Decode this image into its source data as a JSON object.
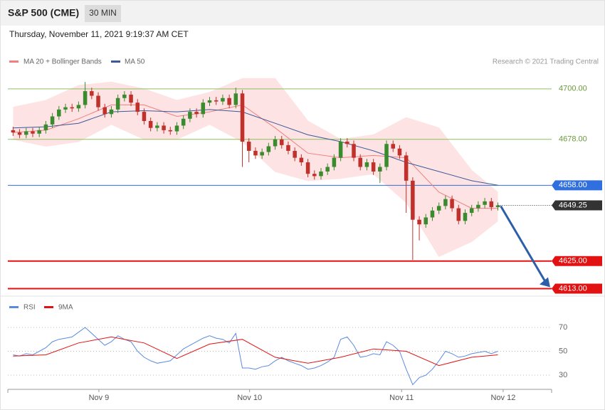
{
  "chart_data": [
    {
      "type": "candlestick",
      "title": "S&P 500 (CME)",
      "timeframe": "30 MIN",
      "subtitle": "Thursday, November 11, 2021 9:19:37 AM CET",
      "source": "Research © 2021 Trading Central",
      "xlim": [
        -0.8,
        82.2
      ],
      "ylim": [
        4611.6,
        4720.1
      ],
      "up_color": "#3a8a2e",
      "down_color": "#c0312b",
      "x": [
        0,
        1,
        2,
        3,
        4,
        5,
        6,
        7,
        8,
        9,
        10,
        11,
        12,
        13,
        14,
        15,
        16,
        17,
        18,
        19,
        20,
        21,
        22,
        23,
        24,
        25,
        26,
        27,
        28,
        29,
        30,
        31,
        32,
        33,
        34,
        35,
        36,
        37,
        38,
        39,
        40,
        41,
        42,
        43,
        44,
        45,
        46,
        47,
        48,
        49,
        50,
        51,
        52,
        53,
        54,
        55,
        56,
        57,
        58,
        59,
        60,
        61,
        62,
        63,
        64,
        65,
        66,
        67,
        68,
        69,
        70,
        71,
        72,
        73,
        74
      ],
      "ohlc": [
        [
          4682,
          4683.5,
          4679.5,
          4681
        ],
        [
          4681,
          4682.5,
          4678.5,
          4680
        ],
        [
          4680,
          4683,
          4678.5,
          4681.5
        ],
        [
          4681.5,
          4683,
          4679,
          4680.5
        ],
        [
          4680.5,
          4683.5,
          4679,
          4682
        ],
        [
          4682,
          4686,
          4680.5,
          4684.5
        ],
        [
          4684.5,
          4689.5,
          4683,
          4688
        ],
        [
          4688,
          4692.5,
          4686.5,
          4691
        ],
        [
          4691,
          4693.5,
          4689.5,
          4692
        ],
        [
          4692,
          4693.5,
          4690,
          4691.5
        ],
        [
          4691.5,
          4694.5,
          4690,
          4693
        ],
        [
          4693,
          4703,
          4691.5,
          4699
        ],
        [
          4699,
          4700.5,
          4695.5,
          4697
        ],
        [
          4697,
          4698.5,
          4690.5,
          4692
        ],
        [
          4692,
          4693.5,
          4687.5,
          4689
        ],
        [
          4689,
          4692.5,
          4687.5,
          4691
        ],
        [
          4691,
          4697.5,
          4689.5,
          4696
        ],
        [
          4696,
          4699,
          4694.5,
          4697.5
        ],
        [
          4697.5,
          4699,
          4692.5,
          4694
        ],
        [
          4694,
          4695.5,
          4688.5,
          4690
        ],
        [
          4690,
          4691.5,
          4684.5,
          4686
        ],
        [
          4686,
          4687.5,
          4681.5,
          4683
        ],
        [
          4683,
          4685.5,
          4681.5,
          4684
        ],
        [
          4684,
          4685.5,
          4680.5,
          4682
        ],
        [
          4682,
          4683.5,
          4680,
          4681.5
        ],
        [
          4681.5,
          4685.5,
          4680,
          4684
        ],
        [
          4684,
          4688.5,
          4682.5,
          4687
        ],
        [
          4687,
          4691.5,
          4685.5,
          4690
        ],
        [
          4690,
          4691.5,
          4687.5,
          4689
        ],
        [
          4689,
          4695.5,
          4687.5,
          4694
        ],
        [
          4694,
          4696.5,
          4692.5,
          4695
        ],
        [
          4695,
          4696.5,
          4693,
          4694.5
        ],
        [
          4694.5,
          4697.5,
          4693,
          4696
        ],
        [
          4696,
          4697.5,
          4691.5,
          4693
        ],
        [
          4693,
          4700.5,
          4691.5,
          4698
        ],
        [
          4698,
          4699.5,
          4666,
          4677
        ],
        [
          4677,
          4678.5,
          4668,
          4673
        ],
        [
          4673,
          4674.5,
          4669.5,
          4671
        ],
        [
          4671,
          4674,
          4669.5,
          4672.5
        ],
        [
          4672.5,
          4676.5,
          4671,
          4675
        ],
        [
          4675,
          4679.5,
          4673.5,
          4678
        ],
        [
          4678,
          4679.5,
          4674,
          4675.5
        ],
        [
          4675.5,
          4677,
          4671.5,
          4673
        ],
        [
          4673,
          4674.5,
          4668.5,
          4670
        ],
        [
          4670,
          4671.5,
          4666.5,
          4668
        ],
        [
          4668,
          4669.5,
          4661.5,
          4663
        ],
        [
          4663,
          4664.5,
          4660.5,
          4662
        ],
        [
          4662,
          4665.5,
          4660.5,
          4664
        ],
        [
          4664,
          4667.5,
          4662.5,
          4666
        ],
        [
          4666,
          4671.5,
          4664.5,
          4670
        ],
        [
          4670,
          4678.5,
          4668.5,
          4677
        ],
        [
          4677,
          4678.5,
          4674.5,
          4676
        ],
        [
          4676,
          4677.5,
          4668.5,
          4670
        ],
        [
          4670,
          4671.5,
          4664.5,
          4666
        ],
        [
          4666,
          4669.5,
          4664.5,
          4668
        ],
        [
          4668,
          4669.5,
          4662.5,
          4664
        ],
        [
          4664,
          4667.5,
          4659,
          4666
        ],
        [
          4666,
          4677.5,
          4664.5,
          4676
        ],
        [
          4676,
          4677.5,
          4672.5,
          4674
        ],
        [
          4674,
          4675.5,
          4669.5,
          4671
        ],
        [
          4671,
          4672.5,
          4646,
          4660
        ],
        [
          4660,
          4661.5,
          4625.5,
          4643
        ],
        [
          4643,
          4644.5,
          4634,
          4641
        ],
        [
          4641,
          4645.5,
          4639.5,
          4644
        ],
        [
          4644,
          4648.5,
          4642.5,
          4647
        ],
        [
          4647,
          4650.5,
          4645.5,
          4649
        ],
        [
          4649,
          4653.5,
          4647.5,
          4652
        ],
        [
          4652,
          4653.5,
          4646.5,
          4648
        ],
        [
          4648,
          4649.5,
          4641,
          4642.5
        ],
        [
          4642.5,
          4647.5,
          4641,
          4646
        ],
        [
          4646,
          4649.5,
          4644.5,
          4648
        ],
        [
          4648,
          4651,
          4646.5,
          4649.5
        ],
        [
          4649.5,
          4652.5,
          4648,
          4651
        ],
        [
          4651,
          4652.5,
          4647,
          4648.5
        ],
        [
          4648.5,
          4650.5,
          4647,
          4649.25
        ]
      ],
      "bands": {
        "name": "MA 20 + Bollinger Bands",
        "color": "#f08080",
        "fill": "#fde3e3",
        "x": [
          0,
          5,
          10,
          15,
          20,
          25,
          30,
          35,
          40,
          45,
          50,
          55,
          60,
          65,
          70,
          74
        ],
        "upper": [
          4692,
          4695,
          4701.5,
          4703,
          4700,
          4695,
          4698.5,
          4704.5,
          4704.5,
          4686,
          4678,
          4680,
          4687.5,
          4683,
          4664.5,
          4655
        ],
        "middle": [
          4681,
          4682,
          4687,
          4693,
          4693,
          4688,
          4690,
          4693,
          4683,
          4672,
          4670,
          4671,
          4670,
          4655,
          4648,
          4648
        ],
        "lower": [
          4678,
          4675,
          4677,
          4684.5,
          4678,
          4678,
          4684.5,
          4677,
          4664,
          4660,
          4661,
          4663,
          4650.5,
          4627,
          4633.5,
          4642.5
        ]
      },
      "ma50": {
        "name": "MA 50",
        "color": "#3c5a9a",
        "x": [
          0,
          5,
          10,
          15,
          20,
          25,
          30,
          35,
          40,
          45,
          50,
          55,
          60,
          65,
          70,
          74
        ],
        "values": [
          4683,
          4683.5,
          4685,
          4690,
          4690.5,
          4690,
          4691,
          4690,
          4685,
          4680,
          4677,
          4673,
          4668,
          4664,
          4660,
          4658
        ]
      },
      "levels": [
        {
          "value": 4700,
          "label": "4700.00",
          "color": "#8dc060",
          "width": 1
        },
        {
          "value": 4678,
          "label": "4678.00",
          "color": "#8dc060",
          "width": 1
        },
        {
          "value": 4658,
          "label": "4658.00",
          "color": "#2f6fe0",
          "width": 1
        },
        {
          "value": 4625,
          "label": "4625.00",
          "color": "#e21212",
          "width": 2
        },
        {
          "value": 4613,
          "label": "4613.00",
          "color": "#e21212",
          "width": 2
        }
      ],
      "last_price": 4649.25
    },
    {
      "type": "line",
      "xlim": [
        -0.8,
        82.2
      ],
      "ylim": [
        19.3,
        81.9
      ],
      "yticks": [
        70,
        50,
        30
      ],
      "xticks": [
        {
          "value": 13.1,
          "label": "Nov 9"
        },
        {
          "value": 36.1,
          "label": "Nov 10"
        },
        {
          "value": 59.3,
          "label": "Nov 11"
        },
        {
          "value": 74.8,
          "label": "Nov 12"
        }
      ],
      "series": [
        {
          "name": "RSI",
          "color": "#5b8be0",
          "x": [
            0,
            1,
            2,
            3,
            4,
            5,
            6,
            7,
            8,
            9,
            10,
            11,
            12,
            13,
            14,
            15,
            16,
            17,
            18,
            19,
            20,
            21,
            22,
            23,
            24,
            25,
            26,
            27,
            28,
            29,
            30,
            31,
            32,
            33,
            34,
            35,
            36,
            37,
            38,
            39,
            40,
            41,
            42,
            43,
            44,
            45,
            46,
            47,
            48,
            49,
            50,
            51,
            52,
            53,
            54,
            55,
            56,
            57,
            58,
            59,
            60,
            61,
            62,
            63,
            64,
            65,
            66,
            67,
            68,
            69,
            70,
            71,
            72,
            73,
            74
          ],
          "values": [
            47,
            46,
            48,
            47,
            50,
            53,
            58,
            60,
            61,
            62,
            66,
            70,
            65,
            60,
            55,
            58,
            63,
            60,
            58,
            50,
            45,
            42,
            40,
            41,
            42,
            47,
            52,
            55,
            58,
            61,
            63,
            61,
            60,
            57,
            65,
            36,
            36,
            35,
            37,
            38,
            42,
            45,
            42,
            40,
            38,
            35,
            36,
            38,
            41,
            45,
            60,
            62,
            55,
            45,
            46,
            48,
            47,
            58,
            55,
            50,
            35,
            22,
            28,
            30,
            35,
            42,
            50,
            48,
            45,
            46,
            48,
            49,
            50,
            48,
            50
          ]
        },
        {
          "name": "9MA",
          "color": "#e21212",
          "x": [
            0,
            5,
            10,
            15,
            20,
            25,
            30,
            35,
            40,
            45,
            50,
            55,
            60,
            65,
            70,
            74
          ],
          "values": [
            46,
            47,
            57,
            62,
            57,
            44,
            56,
            60,
            45,
            40,
            45,
            52,
            50,
            38,
            45,
            47
          ]
        }
      ]
    }
  ]
}
